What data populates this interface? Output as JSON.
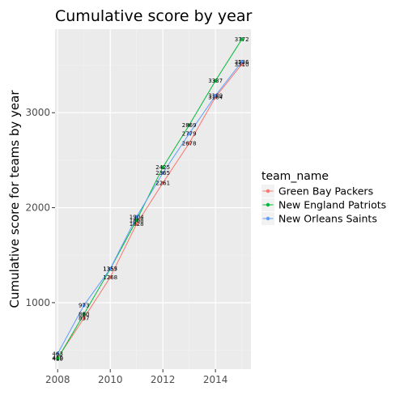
{
  "chart_data": {
    "type": "line",
    "title": "Cumulative score by year",
    "xlabel": "",
    "ylabel": "Cumulative score for teams by year",
    "x": [
      2008,
      2009,
      2010,
      2011,
      2012,
      2013,
      2014,
      2015
    ],
    "xlim": [
      2007.9,
      2015.35
    ],
    "ylim": [
      300,
      3880
    ],
    "x_ticks": [
      "2008",
      "2010",
      "2012",
      "2014"
    ],
    "y_ticks": [
      "1000",
      "2000",
      "3000"
    ],
    "grid": true,
    "legend": {
      "title": "team_name",
      "position": "right"
    },
    "series": [
      {
        "name": "Green Bay Packers",
        "color": "#F8766D",
        "values": [
          419,
          837,
          1268,
          1828,
          2261,
          2678,
          3164,
          3510
        ]
      },
      {
        "name": "New England Patriots",
        "color": "#00BA38",
        "values": [
          410,
          880,
          1355,
          1868,
          2425,
          2869,
          3337,
          3772
        ]
      },
      {
        "name": "New Orleans Saints",
        "color": "#619CFF",
        "values": [
          463,
          973,
          1357,
          1904,
          2365,
          2779,
          3180,
          3536
        ]
      }
    ]
  }
}
